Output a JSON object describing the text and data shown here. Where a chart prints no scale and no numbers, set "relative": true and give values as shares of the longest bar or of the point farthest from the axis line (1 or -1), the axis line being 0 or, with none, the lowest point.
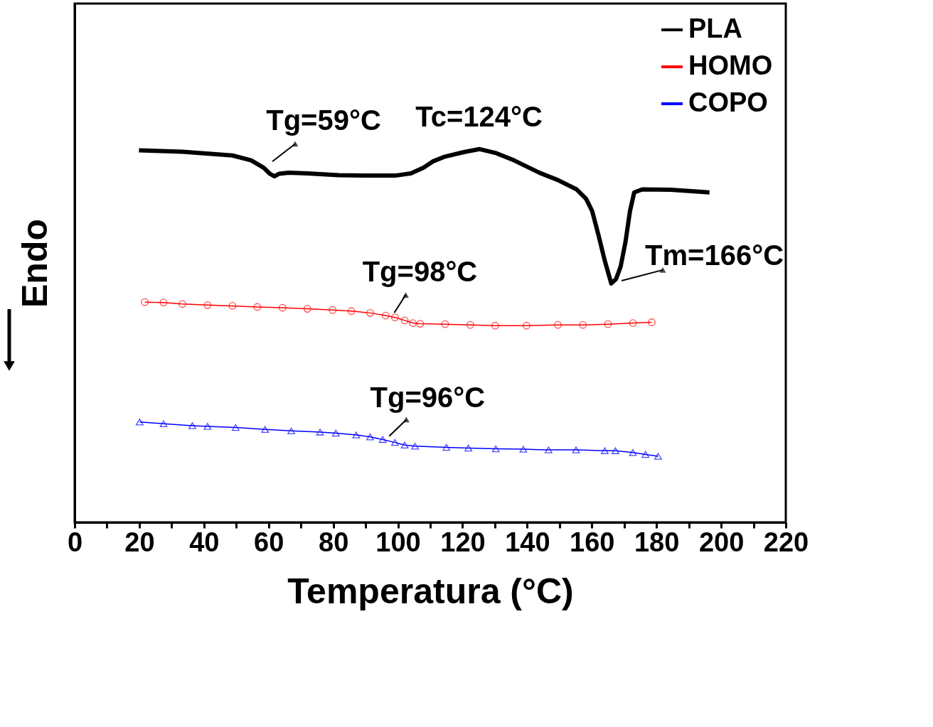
{
  "chart_data": {
    "type": "line",
    "relative": true,
    "xlabel": "Temperatura (°C)",
    "ylabel": "Endo",
    "xlim": [
      0,
      220
    ],
    "xticks": [
      0,
      {
        "value": 10,
        "label": null
      },
      20,
      {
        "value": 30,
        "label": null
      },
      40,
      {
        "value": 50,
        "label": null
      },
      60,
      {
        "value": 70,
        "label": null
      },
      80,
      {
        "value": 90,
        "label": null
      },
      100,
      {
        "value": 110,
        "label": null
      },
      120,
      {
        "value": 130,
        "label": null
      },
      140,
      {
        "value": 150,
        "label": null
      },
      160,
      {
        "value": 170,
        "label": null
      },
      180,
      {
        "value": 190,
        "label": null
      },
      200,
      {
        "value": 210,
        "label": null
      },
      220
    ],
    "legend": "top right",
    "line_style": "solid",
    "series": [
      {
        "name": "PLA",
        "color": "#000000",
        "marker": "none",
        "x": [
          19.9,
          33.3,
          48.8,
          54.6,
          58.5,
          60.4,
          61.8,
          63.3,
          66.2,
          72.0,
          81.7,
          91.4,
          99.1,
          104.0,
          107.9,
          110.8,
          114.6,
          120.4,
          125.3,
          130.1,
          135.9,
          143.7,
          149.5,
          155.3,
          158.2,
          160.1,
          162.1,
          164.0,
          166.0,
          167.5,
          168.9,
          170.4,
          171.8,
          173.1,
          175.6,
          184.4,
          196.4
        ],
        "values": [
          0.997,
          0.993,
          0.983,
          0.97,
          0.95,
          0.934,
          0.927,
          0.934,
          0.937,
          0.935,
          0.93,
          0.929,
          0.929,
          0.935,
          0.95,
          0.967,
          0.98,
          0.992,
          1.0,
          0.99,
          0.97,
          0.937,
          0.917,
          0.892,
          0.867,
          0.834,
          0.768,
          0.701,
          0.64,
          0.652,
          0.685,
          0.751,
          0.834,
          0.884,
          0.892,
          0.891,
          0.884
        ]
      },
      {
        "name": "HOMO",
        "color": "#ff0000",
        "marker": "circle",
        "x": [
          21.7,
          27.5,
          33.3,
          41.1,
          48.8,
          56.5,
          64.3,
          72.0,
          79.8,
          85.6,
          91.4,
          96.2,
          99.1,
          102.1,
          104.6,
          106.9,
          114.6,
          122.4,
          130.1,
          139.8,
          149.5,
          157.2,
          165.0,
          172.7,
          178.5
        ],
        "values": [
          0.59,
          0.589,
          0.585,
          0.582,
          0.58,
          0.577,
          0.575,
          0.572,
          0.569,
          0.566,
          0.561,
          0.554,
          0.549,
          0.541,
          0.534,
          0.532,
          0.531,
          0.529,
          0.527,
          0.527,
          0.529,
          0.529,
          0.531,
          0.534,
          0.536
        ]
      },
      {
        "name": "COPO",
        "color": "#0000ff",
        "marker": "triangle",
        "x": [
          20.1,
          27.5,
          36.4,
          41.1,
          49.8,
          58.9,
          67.0,
          75.9,
          80.8,
          87.1,
          91.4,
          95.3,
          99.1,
          102.1,
          105.3,
          115.0,
          121.8,
          130.3,
          138.8,
          146.6,
          155.1,
          164.0,
          167.3,
          172.7,
          176.6,
          180.5
        ],
        "values": [
          0.269,
          0.264,
          0.259,
          0.257,
          0.254,
          0.249,
          0.245,
          0.242,
          0.239,
          0.234,
          0.229,
          0.222,
          0.214,
          0.207,
          0.204,
          0.201,
          0.199,
          0.197,
          0.196,
          0.194,
          0.194,
          0.192,
          0.192,
          0.187,
          0.182,
          0.177
        ]
      }
    ],
    "annotations": [
      {
        "text": "Tg=59°C",
        "x": 59.4,
        "y": 0.955
      },
      {
        "text": "Tc=124°C",
        "x": 124,
        "y": 1.0
      },
      {
        "text": "Tm=166°C",
        "x": 166,
        "y": 0.64
      },
      {
        "text": "Tg=98°C",
        "x": 98,
        "y": 0.55
      },
      {
        "text": "Tg=96°C",
        "x": 96,
        "y": 0.22
      }
    ]
  }
}
